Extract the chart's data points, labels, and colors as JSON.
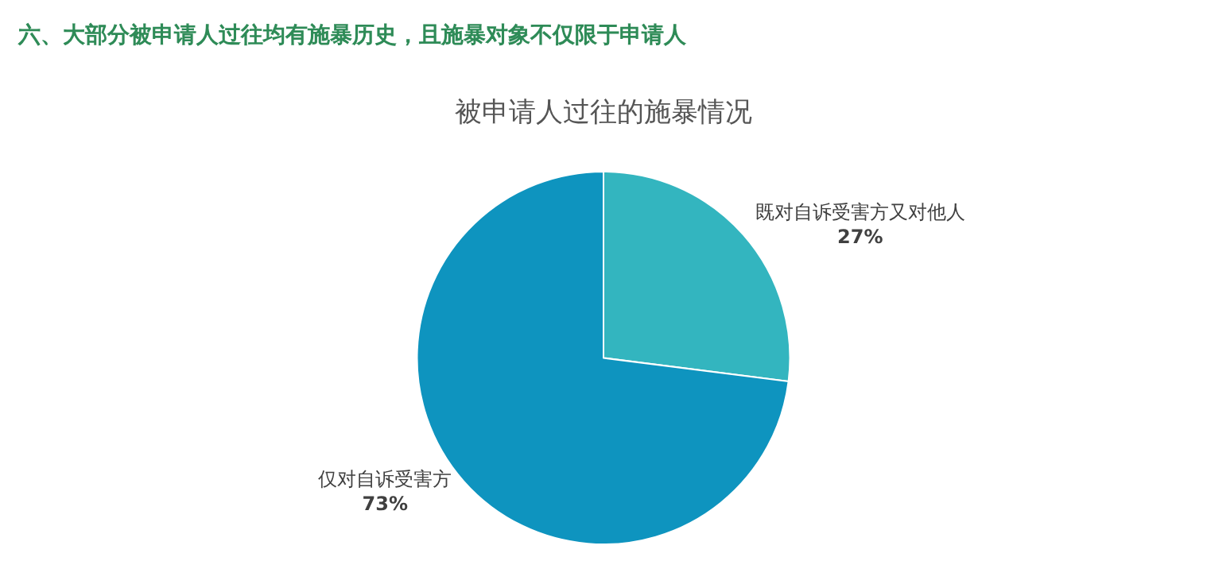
{
  "chart_data": {
    "type": "pie",
    "title": "六、大部分被申请人过往均有施暴历史，且施暴对象不仅限于申请人",
    "subtitle": "被申请人过往的施暴情况",
    "categories": [
      "既对自诉受害方又对他人",
      "仅对自诉受害方"
    ],
    "values": [
      27,
      73
    ],
    "value_labels": [
      "27%",
      "73%"
    ],
    "colors": [
      "#33b5bf",
      "#0e94bf"
    ],
    "legend": false
  }
}
